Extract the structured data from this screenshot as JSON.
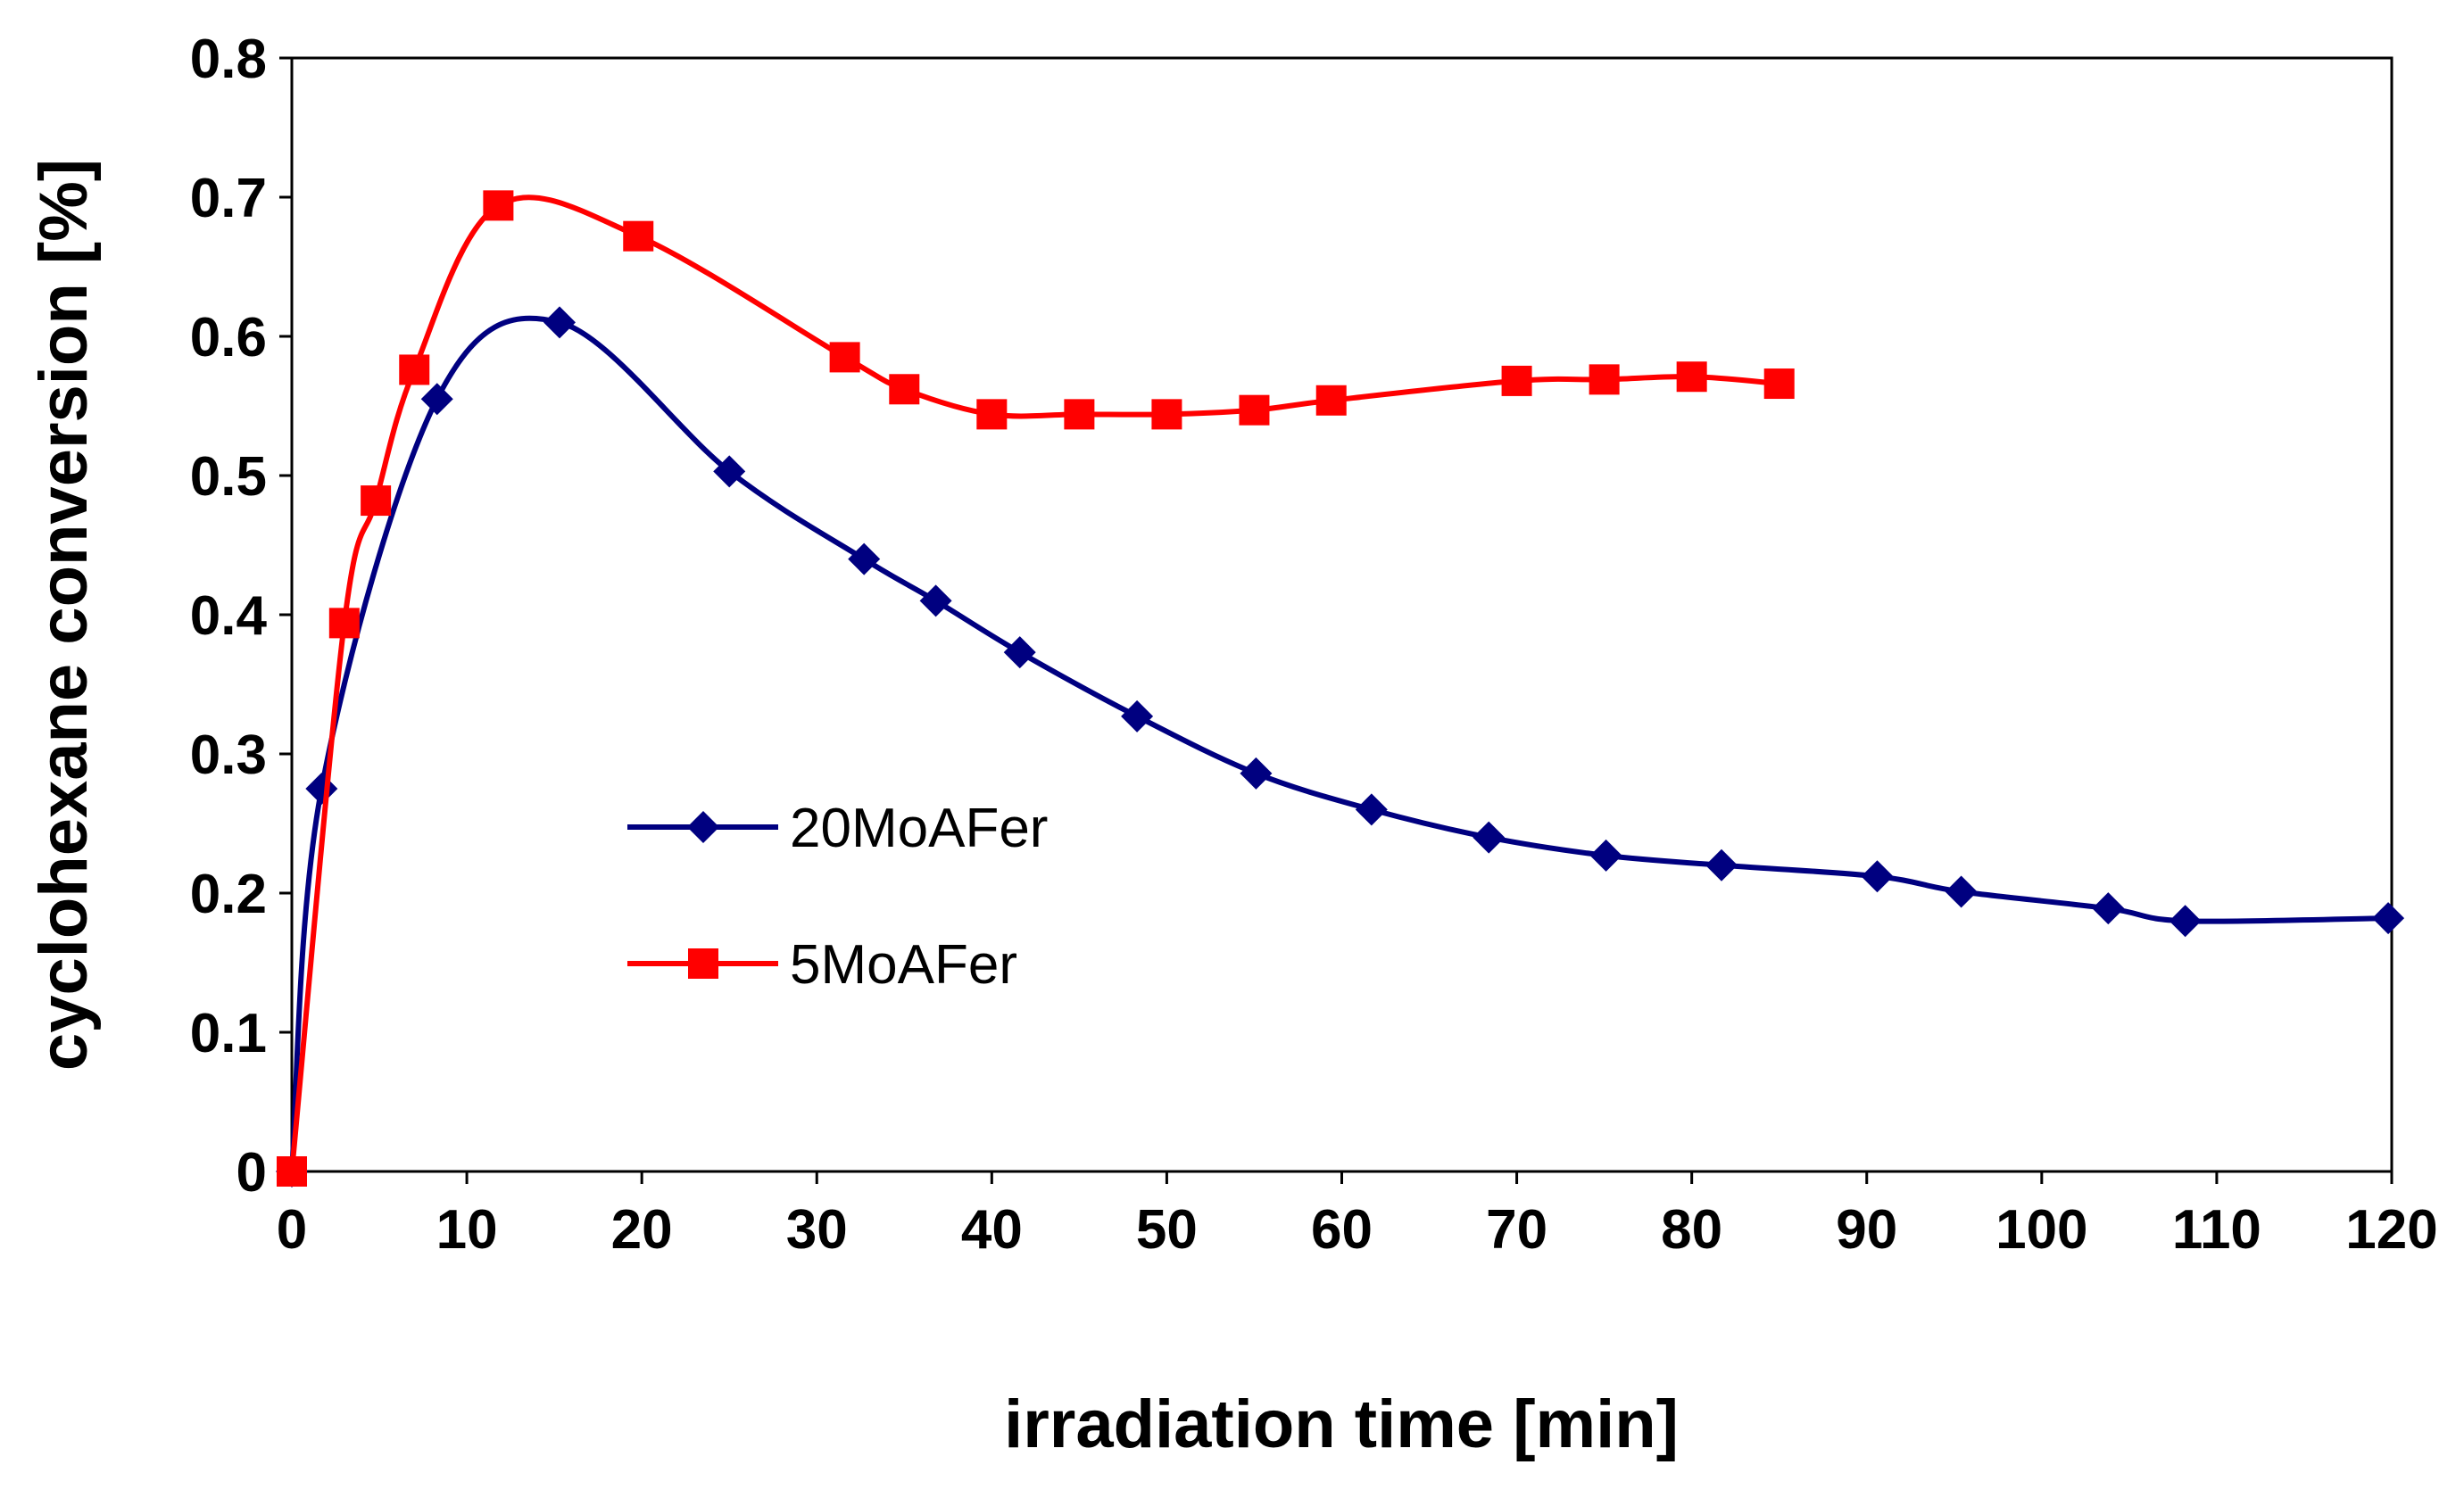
{
  "chart_data": {
    "type": "line",
    "title": "",
    "xlabel": "irradiation time [min]",
    "ylabel": "cyclohexane conversion [%]",
    "xlim": [
      0,
      120
    ],
    "ylim": [
      0,
      0.8
    ],
    "xticks": [
      0,
      10,
      20,
      30,
      40,
      50,
      60,
      70,
      80,
      90,
      100,
      110,
      120
    ],
    "yticks": [
      0,
      0.1,
      0.2,
      0.3,
      0.4,
      0.5,
      0.6,
      0.7,
      0.8
    ],
    "xtick_labels": [
      "0",
      "10",
      "20",
      "30",
      "40",
      "50",
      "60",
      "70",
      "80",
      "90",
      "100",
      "110",
      "120"
    ],
    "ytick_labels": [
      "0",
      "0.1",
      "0.2",
      "0.3",
      "0.4",
      "0.5",
      "0.6",
      "0.7",
      "0.8"
    ],
    "grid": false,
    "legend_position": "center-left",
    "series": [
      {
        "name": "20MoAFer",
        "color": "#000080",
        "marker": "diamond",
        "x": [
          0,
          1.7,
          8.3,
          15.3,
          25,
          32.7,
          36.8,
          41.6,
          48.3,
          55.1,
          61.7,
          68.4,
          75.1,
          81.7,
          90.6,
          95.4,
          103.8,
          108.2,
          119.8
        ],
        "y": [
          0,
          0.275,
          0.555,
          0.61,
          0.503,
          0.44,
          0.41,
          0.373,
          0.327,
          0.286,
          0.26,
          0.24,
          0.227,
          0.22,
          0.212,
          0.201,
          0.189,
          0.18,
          0.182
        ]
      },
      {
        "name": "5MoAFer",
        "color": "#ff0000",
        "marker": "square",
        "x": [
          0,
          3,
          4.8,
          7,
          11.8,
          19.8,
          31.6,
          35,
          40,
          45,
          50,
          55,
          59.4,
          70,
          75,
          80,
          85
        ],
        "y": [
          0,
          0.394,
          0.482,
          0.576,
          0.694,
          0.672,
          0.585,
          0.562,
          0.544,
          0.544,
          0.544,
          0.547,
          0.554,
          0.568,
          0.569,
          0.571,
          0.566
        ]
      }
    ]
  }
}
